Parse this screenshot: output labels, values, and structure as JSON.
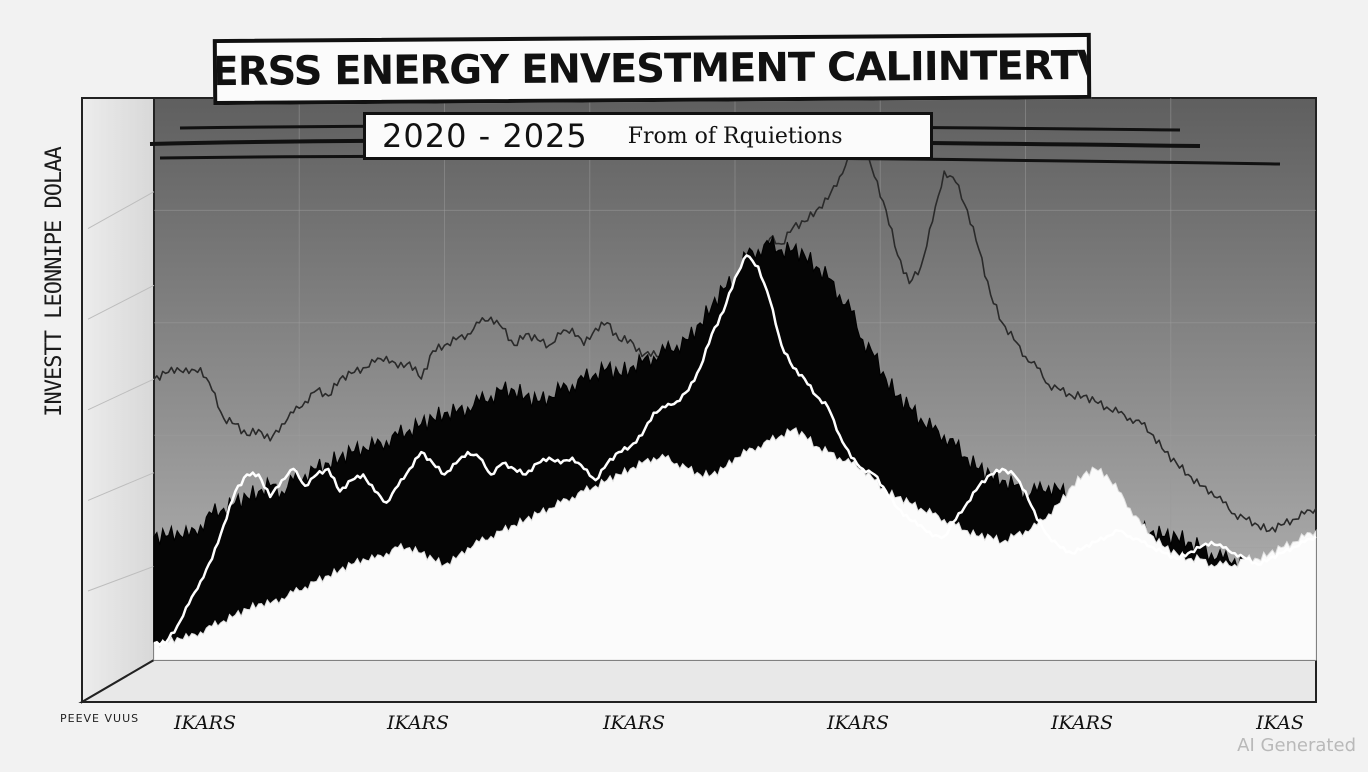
{
  "chart_data": {
    "type": "area",
    "title": "REVERSS ENERGY ENVESTMENT CALIINTERTVIAS",
    "subtitle": "2020 - 2025",
    "subtitle_note": "From of Rquietions",
    "ylabel": "INVESTT LEONNIPE DOLAA",
    "xlabel": "",
    "corner_label": "PEEVE VUUS",
    "categories": [
      "IKARS",
      "IKARS",
      "IKARS",
      "IKARS",
      "IKARS",
      "IKAS"
    ],
    "grid": true,
    "legend": "none",
    "x": [
      0,
      1,
      2,
      3,
      4,
      5,
      6,
      7,
      8,
      9,
      10,
      11,
      12,
      13,
      14,
      15,
      16,
      17,
      18,
      19,
      20,
      21,
      22,
      23,
      24,
      25,
      26,
      27,
      28,
      29,
      30,
      31,
      32,
      33,
      34,
      35,
      36,
      37,
      38,
      39,
      40,
      41,
      42,
      43,
      44,
      45,
      46,
      47,
      48,
      49,
      50,
      51,
      52,
      53,
      54,
      55,
      56,
      57,
      58,
      59,
      60,
      61,
      62,
      63,
      64,
      65,
      66,
      67,
      68,
      69,
      70,
      71,
      72,
      73,
      74,
      75,
      76,
      77,
      78,
      79,
      80,
      81,
      82,
      83,
      84,
      85,
      86,
      87,
      88,
      89,
      90,
      91,
      92,
      93,
      94,
      95,
      96,
      97,
      98,
      99,
      100
    ],
    "ylim": [
      0,
      100
    ],
    "xlim": [
      0,
      100
    ],
    "series": [
      {
        "name": "",
        "style": "thin-line",
        "color": "#2a2a2a",
        "values": [
          50,
          51,
          52,
          51,
          52,
          48,
          43,
          42,
          40,
          41,
          39,
          42,
          44,
          46,
          48,
          47,
          50,
          51,
          52,
          53,
          54,
          52,
          53,
          50,
          55,
          56,
          57,
          58,
          60,
          61,
          59,
          56,
          58,
          57,
          56,
          58,
          59,
          56,
          59,
          60,
          57,
          57,
          54,
          55,
          53,
          55,
          56,
          58,
          59,
          62,
          61,
          66,
          69,
          75,
          74,
          77,
          78,
          80,
          82,
          86,
          90,
          92,
          86,
          80,
          72,
          67,
          70,
          78,
          87,
          85,
          80,
          73,
          65,
          60,
          57,
          54,
          52,
          49,
          48,
          47,
          47,
          46,
          45,
          44,
          43,
          42,
          40,
          37,
          35,
          33,
          31,
          30,
          28,
          26,
          25,
          24,
          23,
          24,
          25,
          26,
          27
        ]
      },
      {
        "name": "",
        "style": "dark-fill",
        "color": "#050505",
        "values": [
          22,
          22,
          23,
          22,
          24,
          26,
          27,
          28,
          29,
          30,
          31,
          30,
          32,
          33,
          34,
          35,
          36,
          37,
          38,
          38,
          39,
          40,
          41,
          42,
          43,
          44,
          44,
          45,
          46,
          47,
          48,
          48,
          47,
          46,
          47,
          48,
          49,
          50,
          51,
          52,
          51,
          52,
          53,
          54,
          55,
          56,
          57,
          60,
          63,
          66,
          68,
          72,
          73,
          74,
          73,
          73,
          72,
          70,
          68,
          65,
          62,
          57,
          54,
          50,
          47,
          45,
          43,
          41,
          40,
          38,
          36,
          34,
          33,
          32,
          31,
          30,
          30,
          31,
          30,
          29,
          28,
          27,
          26,
          25,
          24,
          23,
          23,
          22,
          22,
          21,
          20,
          19,
          18,
          18,
          17,
          17,
          17,
          18,
          18,
          19,
          20
        ]
      },
      {
        "name": "",
        "style": "light-fill",
        "color": "#fbfbfb",
        "values": [
          3,
          3,
          4,
          4,
          5,
          6,
          7,
          8,
          9,
          10,
          10,
          11,
          12,
          13,
          14,
          15,
          16,
          17,
          18,
          18,
          19,
          20,
          20,
          19,
          18,
          17,
          18,
          20,
          21,
          22,
          23,
          24,
          25,
          26,
          27,
          28,
          29,
          30,
          31,
          32,
          33,
          34,
          35,
          36,
          36,
          35,
          34,
          33,
          33,
          34,
          36,
          37,
          38,
          39,
          40,
          41,
          40,
          38,
          37,
          36,
          35,
          34,
          32,
          30,
          29,
          28,
          27,
          26,
          25,
          24,
          23,
          22,
          22,
          21,
          22,
          23,
          24,
          26,
          28,
          31,
          33,
          34,
          33,
          30,
          27,
          24,
          22,
          20,
          19,
          18,
          18,
          17,
          17,
          17,
          18,
          18,
          19,
          20,
          21,
          22,
          23
        ]
      },
      {
        "name": "",
        "style": "white-line",
        "color": "#ffffff",
        "values": [
          3,
          3,
          6,
          10,
          14,
          18,
          24,
          30,
          33,
          33,
          29,
          32,
          34,
          31,
          33,
          34,
          30,
          32,
          33,
          30,
          28,
          31,
          34,
          37,
          35,
          33,
          35,
          37,
          36,
          33,
          35,
          34,
          33,
          35,
          36,
          35,
          36,
          34,
          32,
          35,
          37,
          38,
          40,
          44,
          45,
          46,
          48,
          52,
          58,
          62,
          68,
          72,
          70,
          64,
          56,
          52,
          50,
          47,
          45,
          40,
          36,
          34,
          33,
          30,
          27,
          25,
          24,
          22,
          22,
          25,
          28,
          31,
          33,
          34,
          33,
          30,
          25,
          22,
          20,
          19,
          20,
          21,
          22,
          23,
          22,
          21,
          20,
          19,
          18,
          19,
          20,
          21,
          20,
          19,
          18,
          17,
          18,
          19,
          20,
          21,
          22
        ]
      }
    ]
  }
}
